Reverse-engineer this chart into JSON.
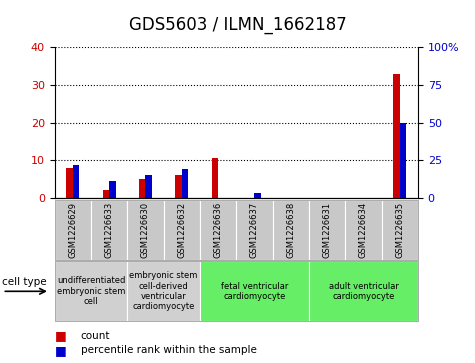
{
  "title": "GDS5603 / ILMN_1662187",
  "samples": [
    "GSM1226629",
    "GSM1226633",
    "GSM1226630",
    "GSM1226632",
    "GSM1226636",
    "GSM1226637",
    "GSM1226638",
    "GSM1226631",
    "GSM1226634",
    "GSM1226635"
  ],
  "counts": [
    8,
    2,
    5,
    6,
    10.5,
    0,
    0,
    0,
    0,
    33
  ],
  "percentile_ranks": [
    22,
    11,
    15,
    19,
    0,
    3,
    0,
    0,
    0,
    50
  ],
  "ylim_left": [
    0,
    40
  ],
  "ylim_right": [
    0,
    100
  ],
  "yticks_left": [
    0,
    10,
    20,
    30,
    40
  ],
  "yticks_right": [
    0,
    25,
    50,
    75,
    100
  ],
  "cell_types": [
    {
      "label": "undifferentiated\nembryonic stem\ncell",
      "start": 0,
      "end": 2,
      "color": "#d0d0d0"
    },
    {
      "label": "embryonic stem\ncell-derived\nventricular\ncardiomyocyte",
      "start": 2,
      "end": 4,
      "color": "#d0d0d0"
    },
    {
      "label": "fetal ventricular\ncardiomyocyte",
      "start": 4,
      "end": 7,
      "color": "#66ee66"
    },
    {
      "label": "adult ventricular\ncardiomyocyte",
      "start": 7,
      "end": 10,
      "color": "#66ee66"
    }
  ],
  "bar_width": 0.18,
  "count_color": "#cc0000",
  "percentile_color": "#0000cc",
  "tick_label_color_left": "#cc0000",
  "tick_label_color_right": "#0000cc",
  "title_fontsize": 12,
  "legend_label_count": "count",
  "legend_label_percentile": "percentile rank within the sample",
  "cell_type_label": "cell type",
  "background_color": "#ffffff",
  "plot_bg_color": "#ffffff",
  "sample_box_color": "#c8c8c8",
  "grid_color": "#000000"
}
